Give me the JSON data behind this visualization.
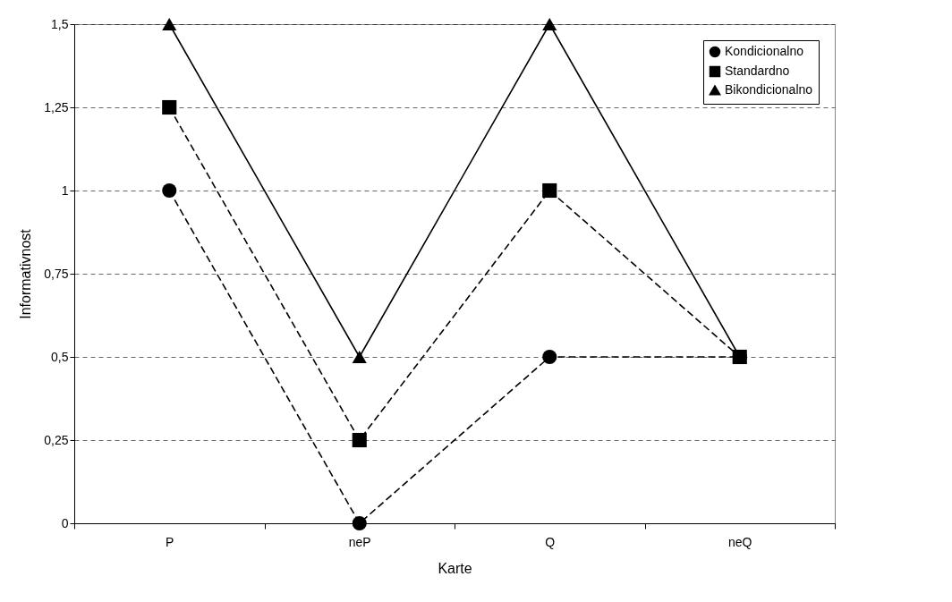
{
  "chart_data": {
    "type": "line",
    "xlabel": "Karte",
    "ylabel": "Informativnost",
    "categories": [
      "P",
      "neP",
      "Q",
      "neQ"
    ],
    "series": [
      {
        "name": "Kondicionalno",
        "color": "#000000",
        "values": [
          1,
          0,
          0.5,
          0.5
        ],
        "marker": "circle",
        "line_style": "dashed"
      },
      {
        "name": "Standardno",
        "color": "#000000",
        "values": [
          1.25,
          0.25,
          1,
          0.5
        ],
        "marker": "square",
        "line_style": "dashed"
      },
      {
        "name": "Bikondicionalno",
        "color": "#000000",
        "values": [
          1.5,
          0.5,
          1.5,
          0.5
        ],
        "marker": "triangle",
        "line_style": "solid"
      }
    ],
    "ylim": [
      0,
      1.5
    ],
    "yticks": [
      0,
      {
        "value": 0.25,
        "label": "0,25"
      },
      {
        "value": 0.5,
        "label": "0,5"
      },
      {
        "value": 0.75,
        "label": "0,75"
      },
      1,
      {
        "value": 1.25,
        "label": "1,25"
      },
      {
        "value": 1.5,
        "label": "1,5"
      }
    ],
    "grid": "y",
    "legend": "top right"
  }
}
